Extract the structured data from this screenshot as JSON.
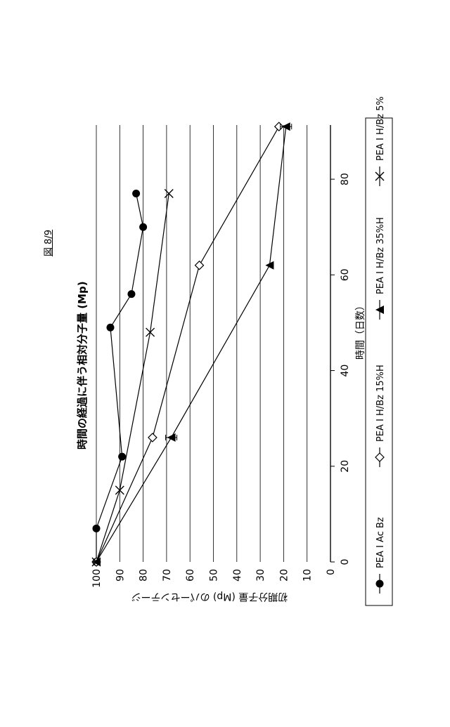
{
  "page": {
    "figure_label": "図 8/9"
  },
  "chart_data": {
    "type": "line",
    "title": "時間の経過に伴う相対分子量 (Mp)",
    "xlabel": "時間（日数）",
    "ylabel": "初期分子量 (Mp) のパーセンテージ",
    "xlim": [
      0,
      90
    ],
    "ylim": [
      0,
      100
    ],
    "xticks": [
      0,
      20,
      40,
      60,
      80
    ],
    "yticks": [
      100,
      90,
      80,
      70,
      60,
      50,
      40,
      30,
      20,
      10,
      0
    ],
    "grid": "horizontal",
    "legend_position": "bottom",
    "series": [
      {
        "name": "PEA I Ac Bz",
        "marker": "circle",
        "x": [
          0,
          0,
          7,
          22,
          49,
          56,
          70,
          77
        ],
        "y": [
          100,
          100,
          100,
          89,
          94,
          85,
          80,
          83
        ]
      },
      {
        "name": "PEA I H/Bz 15%H",
        "marker": "diamond",
        "x": [
          0,
          26,
          62,
          91
        ],
        "y": [
          100,
          76,
          56,
          22
        ]
      },
      {
        "name": "PEA I H/Bz 35%H",
        "marker": "triangle",
        "x": [
          0,
          26,
          62,
          91
        ],
        "y": [
          100,
          68,
          26,
          19
        ]
      },
      {
        "name": "PEA I H/Bz 5%",
        "marker": "x",
        "x": [
          0,
          15,
          48,
          77
        ],
        "y": [
          100,
          90,
          77,
          69
        ]
      }
    ]
  }
}
